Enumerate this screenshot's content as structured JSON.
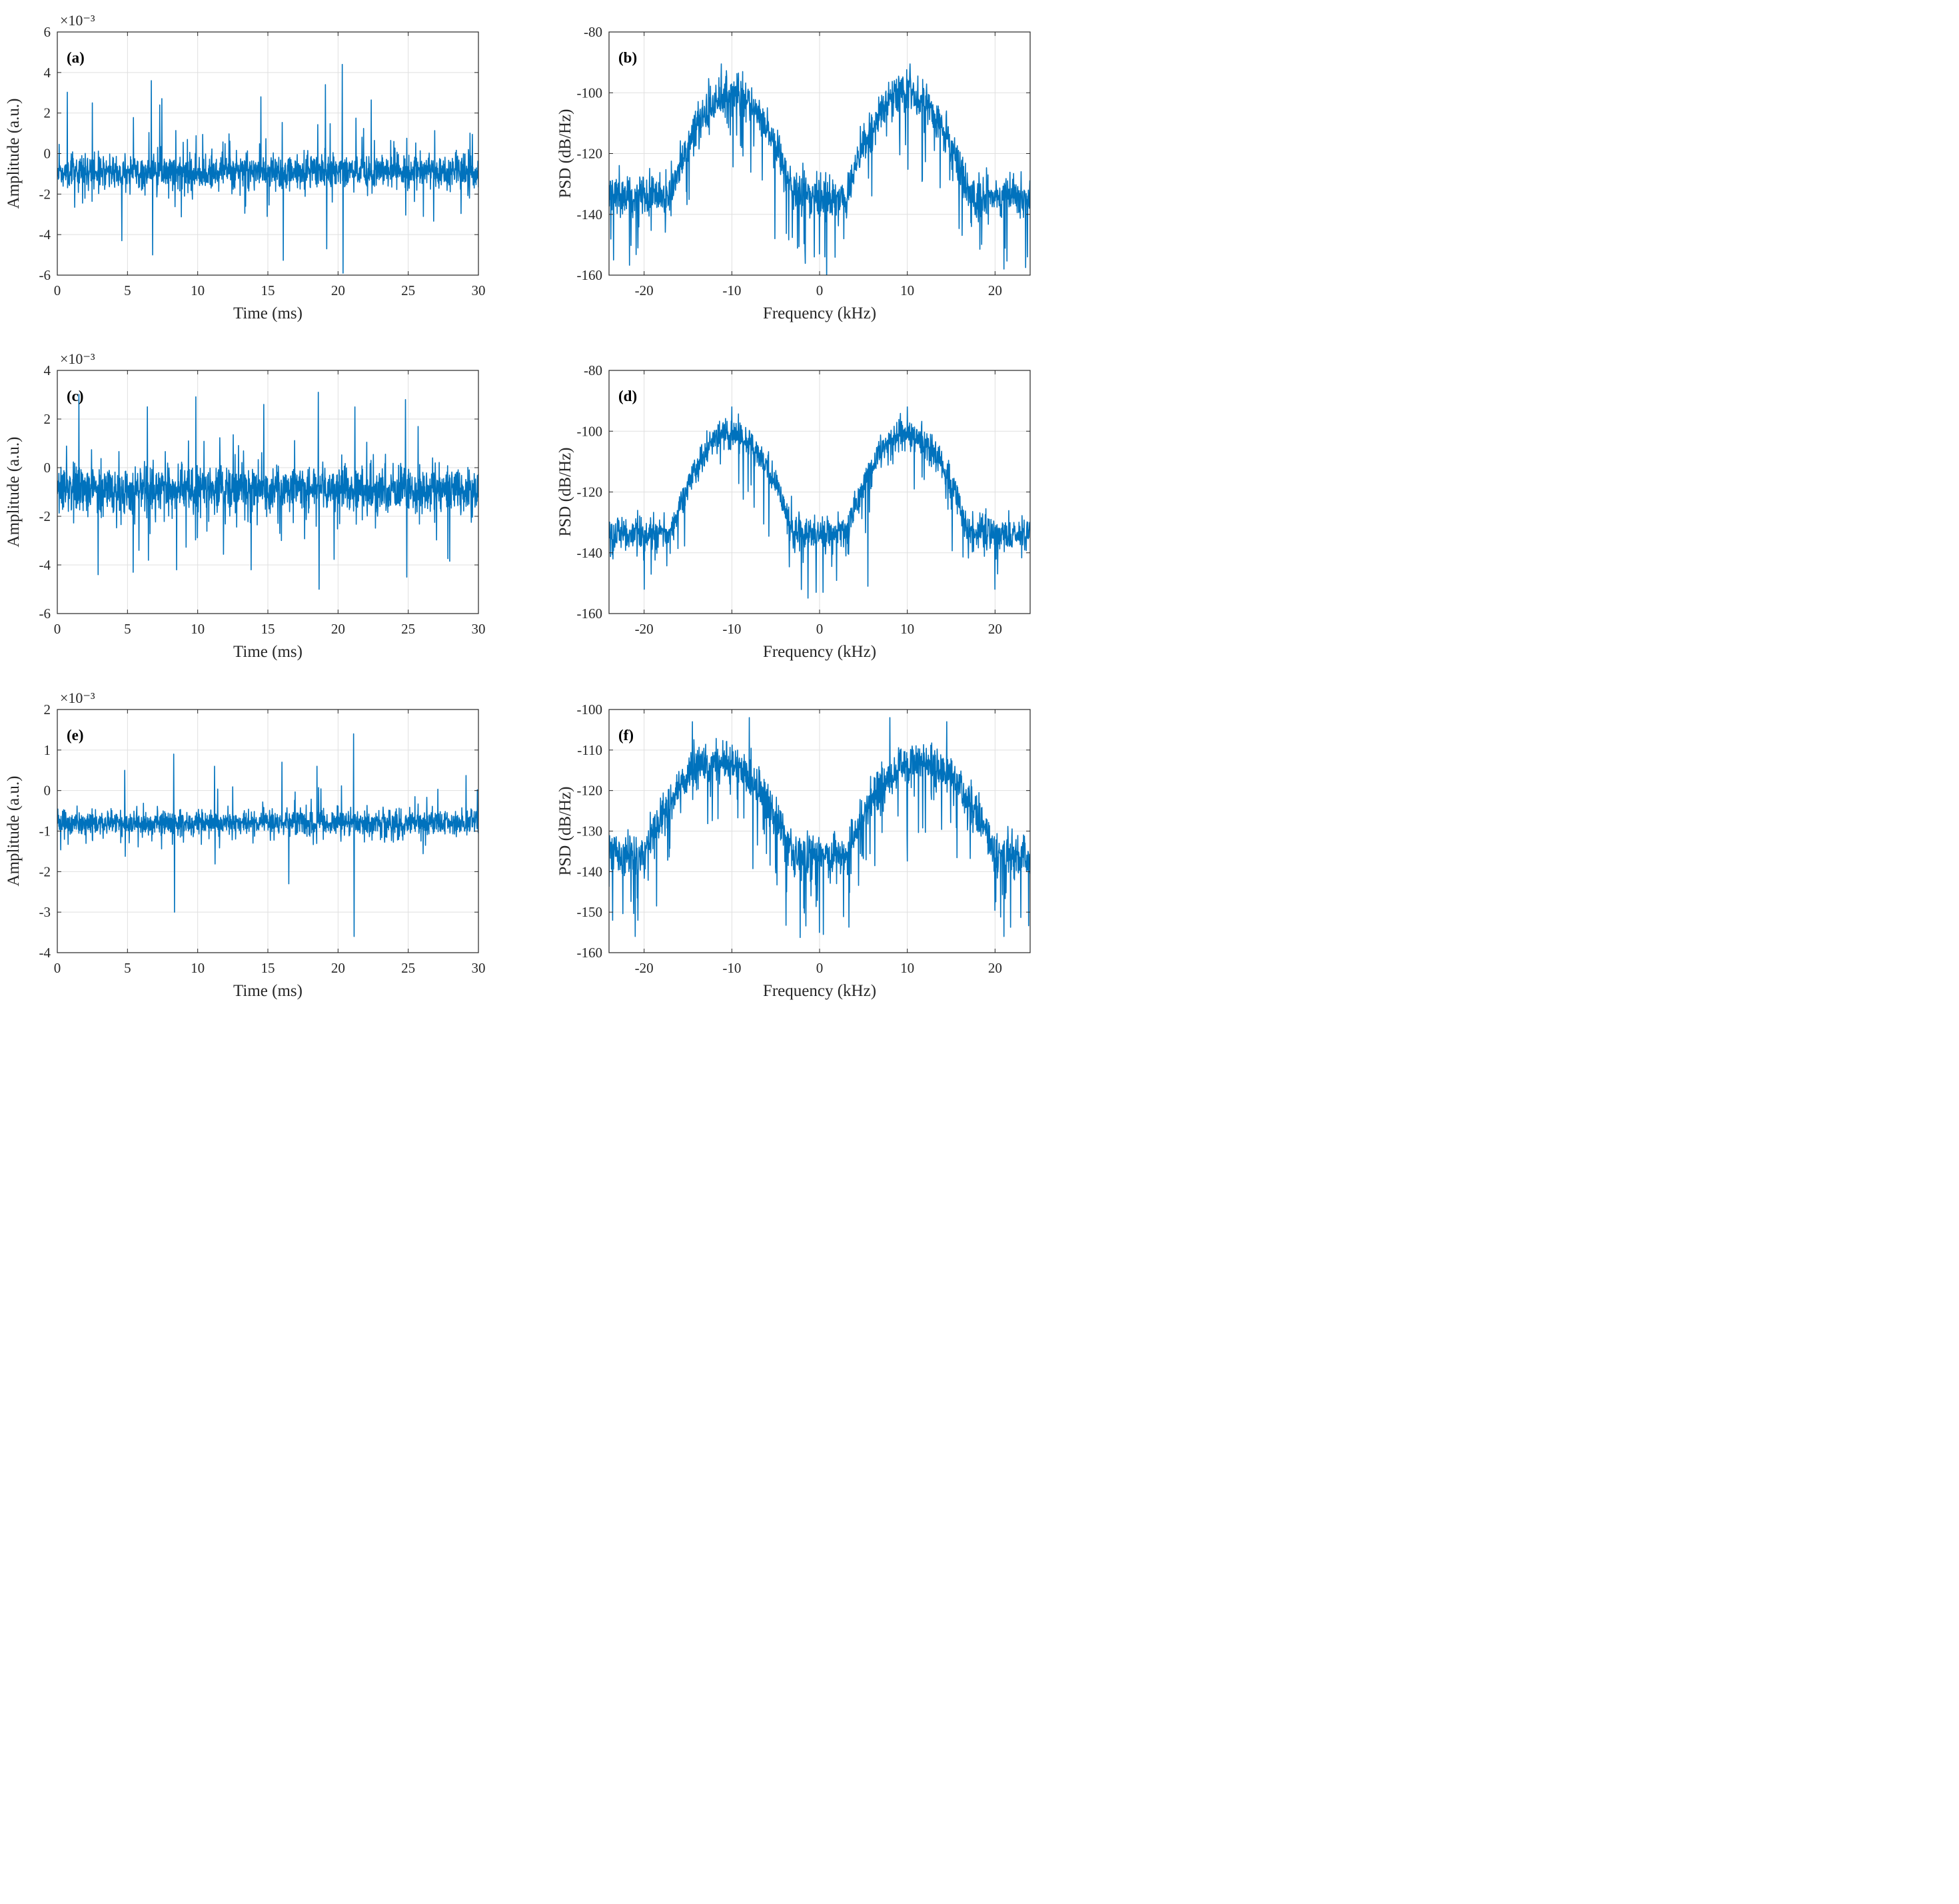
{
  "figure": {
    "colors": {
      "line": "#0072BD",
      "axis": "#262626",
      "grid": "#dfdfdf",
      "background": "#ffffff"
    }
  },
  "chart_data": [
    {
      "id": "a",
      "type": "line",
      "label": "(a)",
      "xlabel": "Time (ms)",
      "ylabel": "Amplitude (a.u.)",
      "exponent_label": "×10⁻³",
      "xlim": [
        0,
        30
      ],
      "ylim": [
        -6,
        6
      ],
      "xticks": [
        0,
        5,
        10,
        15,
        20,
        25,
        30
      ],
      "yticks": [
        -6,
        -4,
        -2,
        0,
        2,
        4,
        6
      ],
      "grid": true,
      "series": [
        {
          "name": "Amplitude",
          "generator": "time",
          "x_start": 0,
          "x_end": 30,
          "n_points": 1600,
          "baseline": -0.9,
          "noise_sigma": 0.75,
          "seed": 11,
          "peaks": [
            {
              "x": 20.3,
              "y": 4.4
            },
            {
              "x": 20.35,
              "y": -5.9
            },
            {
              "x": 6.7,
              "y": 3.6
            },
            {
              "x": 19.1,
              "y": 3.4
            },
            {
              "x": 6.8,
              "y": -5.0
            },
            {
              "x": 19.2,
              "y": -4.7
            },
            {
              "x": 4.6,
              "y": -4.3
            },
            {
              "x": 14.5,
              "y": 2.8
            },
            {
              "x": 2.5,
              "y": 2.5
            },
            {
              "x": 7.3,
              "y": 2.4
            }
          ]
        }
      ]
    },
    {
      "id": "b",
      "type": "line",
      "label": "(b)",
      "xlabel": "Frequency (kHz)",
      "ylabel": "PSD (dB/Hz)",
      "xlim": [
        -24,
        24
      ],
      "ylim": [
        -160,
        -80
      ],
      "xticks": [
        -20,
        -10,
        0,
        10,
        20
      ],
      "yticks": [
        -160,
        -140,
        -120,
        -100,
        -80
      ],
      "grid": true,
      "series": [
        {
          "name": "PSD",
          "generator": "psd",
          "x_start": -24,
          "x_end": 24,
          "n_points": 1400,
          "noise_floor": -134,
          "peak_level": -100,
          "lobe_center": 10,
          "lobe_width": 12,
          "noise_sigma": 5.0,
          "dip_probability": 0.05,
          "dip_depth": 16,
          "seed": 21,
          "peaks": [
            {
              "x": -11.2,
              "y": -90.5
            },
            {
              "x": 10.3,
              "y": -90.5
            },
            {
              "x": -23.5,
              "y": -155
            },
            {
              "x": 23.7,
              "y": -154
            },
            {
              "x": -0.6,
              "y": -154
            },
            {
              "x": 0.6,
              "y": -154
            },
            {
              "x": -5.1,
              "y": -148
            }
          ]
        }
      ]
    },
    {
      "id": "c",
      "type": "line",
      "label": "(c)",
      "xlabel": "Time (ms)",
      "ylabel": "Amplitude (a.u.)",
      "exponent_label": "×10⁻³",
      "xlim": [
        0,
        30
      ],
      "ylim": [
        -6,
        4
      ],
      "xticks": [
        0,
        5,
        10,
        15,
        20,
        25,
        30
      ],
      "yticks": [
        -6,
        -4,
        -2,
        0,
        2,
        4
      ],
      "grid": true,
      "series": [
        {
          "name": "Amplitude",
          "generator": "time",
          "x_start": 0,
          "x_end": 30,
          "n_points": 1600,
          "baseline": -0.9,
          "noise_sigma": 0.85,
          "seed": 33,
          "peaks": [
            {
              "x": 18.6,
              "y": 3.1
            },
            {
              "x": 18.65,
              "y": -5.0
            },
            {
              "x": 24.8,
              "y": 2.8
            },
            {
              "x": 24.9,
              "y": -4.5
            },
            {
              "x": 2.9,
              "y": -4.4
            },
            {
              "x": 5.4,
              "y": -4.3
            },
            {
              "x": 14.7,
              "y": 2.6
            },
            {
              "x": 21.2,
              "y": 2.5
            },
            {
              "x": 8.5,
              "y": -4.2
            },
            {
              "x": 13.8,
              "y": -4.2
            }
          ]
        }
      ]
    },
    {
      "id": "d",
      "type": "line",
      "label": "(d)",
      "xlabel": "Frequency (kHz)",
      "ylabel": "PSD (dB/Hz)",
      "xlim": [
        -24,
        24
      ],
      "ylim": [
        -160,
        -80
      ],
      "xticks": [
        -20,
        -10,
        0,
        10,
        20
      ],
      "yticks": [
        -160,
        -140,
        -120,
        -100,
        -80
      ],
      "grid": true,
      "series": [
        {
          "name": "PSD",
          "generator": "psd",
          "x_start": -24,
          "x_end": 24,
          "n_points": 1400,
          "noise_floor": -134,
          "peak_level": -101,
          "lobe_center": 10,
          "lobe_width": 12,
          "noise_sigma": 4.0,
          "dip_probability": 0.04,
          "dip_depth": 14,
          "seed": 44,
          "peaks": [
            {
              "x": -10.0,
              "y": -92
            },
            {
              "x": 10.0,
              "y": -92
            },
            {
              "x": -20.0,
              "y": -152
            },
            {
              "x": 20.0,
              "y": -152
            },
            {
              "x": -0.4,
              "y": -153
            },
            {
              "x": 0.4,
              "y": -153
            },
            {
              "x": 5.5,
              "y": -151
            }
          ]
        }
      ]
    },
    {
      "id": "e",
      "type": "line",
      "label": "(e)",
      "xlabel": "Time (ms)",
      "ylabel": "Amplitude (a.u.)",
      "exponent_label": "×10⁻³",
      "xlim": [
        0,
        30
      ],
      "ylim": [
        -4,
        2
      ],
      "xticks": [
        0,
        5,
        10,
        15,
        20,
        25,
        30
      ],
      "yticks": [
        -4,
        -3,
        -2,
        -1,
        0,
        1,
        2
      ],
      "grid": true,
      "series": [
        {
          "name": "Amplitude",
          "generator": "time",
          "x_start": 0,
          "x_end": 30,
          "n_points": 1600,
          "baseline": -0.8,
          "noise_sigma": 0.26,
          "seed": 55,
          "peaks": [
            {
              "x": 21.1,
              "y": 1.4
            },
            {
              "x": 21.15,
              "y": -3.6
            },
            {
              "x": 8.3,
              "y": 0.9
            },
            {
              "x": 8.35,
              "y": -3.0
            },
            {
              "x": 16.0,
              "y": 0.7
            },
            {
              "x": 18.5,
              "y": 0.6
            },
            {
              "x": 4.8,
              "y": 0.5
            },
            {
              "x": 11.2,
              "y": 0.6
            },
            {
              "x": 16.5,
              "y": -2.3
            }
          ]
        }
      ]
    },
    {
      "id": "f",
      "type": "line",
      "label": "(f)",
      "xlabel": "Frequency (kHz)",
      "ylabel": "PSD (dB/Hz)",
      "xlim": [
        -24,
        24
      ],
      "ylim": [
        -160,
        -100
      ],
      "xticks": [
        -20,
        -10,
        0,
        10,
        20
      ],
      "yticks": [
        -160,
        -150,
        -140,
        -130,
        -120,
        -110,
        -100
      ],
      "grid": true,
      "series": [
        {
          "name": "PSD",
          "generator": "psd",
          "x_start": -24,
          "x_end": 24,
          "n_points": 1400,
          "noise_floor": -136,
          "peak_level": -113,
          "lobe_center": 11.5,
          "lobe_width": 15,
          "noise_sigma": 3.8,
          "dip_probability": 0.05,
          "dip_depth": 12,
          "seed": 66,
          "peaks": [
            {
              "x": -8.0,
              "y": -102
            },
            {
              "x": 8.0,
              "y": -102
            },
            {
              "x": -14.5,
              "y": -103
            },
            {
              "x": 14.5,
              "y": -103
            },
            {
              "x": -21.0,
              "y": -156
            },
            {
              "x": 21.0,
              "y": -156
            },
            {
              "x": 0.0,
              "y": -155
            },
            {
              "x": -23.6,
              "y": -152
            }
          ]
        }
      ]
    }
  ]
}
